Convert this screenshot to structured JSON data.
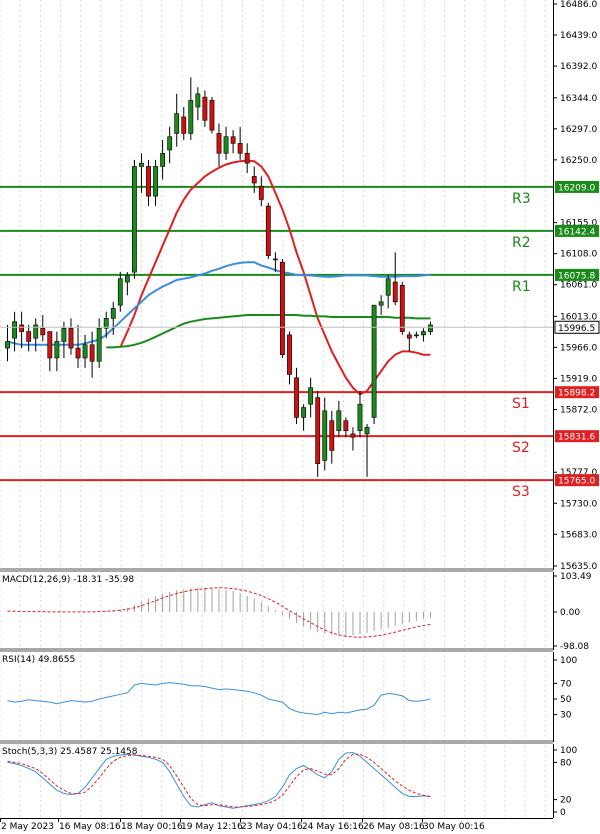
{
  "chart_data": [
    {
      "type": "candlestick",
      "panel": "price",
      "ylim": [
        15635.0,
        16486.0
      ],
      "y_ticks": [
        "16486.0",
        "16439.0",
        "16392.0",
        "16344.0",
        "16297.0",
        "16250.0",
        "16155.0",
        "16108.0",
        "16061.0",
        "16013.0",
        "15966.0",
        "15919.0",
        "15872.0",
        "15777.0",
        "15730.0",
        "15683.0",
        "15635.0"
      ],
      "x_labels": [
        "2 May 2023",
        "16 May 08:16",
        "18 May 00:16",
        "19 May 12:16",
        "23 May 04:16",
        "24 May 16:16",
        "26 May 08:16",
        "30 May 00:16"
      ],
      "current_price": "15996.5",
      "candles": [
        {
          "o": 15965,
          "h": 16000,
          "l": 15945,
          "c": 15975
        },
        {
          "o": 15980,
          "h": 16020,
          "l": 15960,
          "c": 16005
        },
        {
          "o": 16000,
          "h": 16020,
          "l": 15965,
          "c": 15990
        },
        {
          "o": 15990,
          "h": 16000,
          "l": 15960,
          "c": 15975
        },
        {
          "o": 15980,
          "h": 16010,
          "l": 15960,
          "c": 16000
        },
        {
          "o": 15995,
          "h": 16015,
          "l": 15975,
          "c": 15985
        },
        {
          "o": 15990,
          "h": 15990,
          "l": 15930,
          "c": 15950
        },
        {
          "o": 15950,
          "h": 15990,
          "l": 15930,
          "c": 15975
        },
        {
          "o": 15975,
          "h": 16005,
          "l": 15950,
          "c": 15995
        },
        {
          "o": 15995,
          "h": 16010,
          "l": 15955,
          "c": 15965
        },
        {
          "o": 15965,
          "h": 16000,
          "l": 15935,
          "c": 15950
        },
        {
          "o": 15950,
          "h": 15985,
          "l": 15935,
          "c": 15970
        },
        {
          "o": 15970,
          "h": 15990,
          "l": 15920,
          "c": 15945
        },
        {
          "o": 15945,
          "h": 16010,
          "l": 15935,
          "c": 15995
        },
        {
          "o": 15995,
          "h": 16020,
          "l": 15980,
          "c": 16010
        },
        {
          "o": 16010,
          "h": 16035,
          "l": 15985,
          "c": 16025
        },
        {
          "o": 16030,
          "h": 16080,
          "l": 16020,
          "c": 16070
        },
        {
          "o": 16065,
          "h": 16080,
          "l": 16045,
          "c": 16075
        },
        {
          "o": 16080,
          "h": 16250,
          "l": 16070,
          "c": 16240
        },
        {
          "o": 16240,
          "h": 16260,
          "l": 16200,
          "c": 16245
        },
        {
          "o": 16240,
          "h": 16250,
          "l": 16180,
          "c": 16195
        },
        {
          "o": 16195,
          "h": 16250,
          "l": 16180,
          "c": 16240
        },
        {
          "o": 16240,
          "h": 16280,
          "l": 16220,
          "c": 16260
        },
        {
          "o": 16265,
          "h": 16300,
          "l": 16245,
          "c": 16285
        },
        {
          "o": 16290,
          "h": 16350,
          "l": 16270,
          "c": 16320
        },
        {
          "o": 16315,
          "h": 16330,
          "l": 16280,
          "c": 16290
        },
        {
          "o": 16290,
          "h": 16375,
          "l": 16280,
          "c": 16340
        },
        {
          "o": 16330,
          "h": 16360,
          "l": 16310,
          "c": 16350
        },
        {
          "o": 16345,
          "h": 16355,
          "l": 16300,
          "c": 16310
        },
        {
          "o": 16340,
          "h": 16345,
          "l": 16290,
          "c": 16295
        },
        {
          "o": 16290,
          "h": 16305,
          "l": 16240,
          "c": 16260
        },
        {
          "o": 16260,
          "h": 16300,
          "l": 16250,
          "c": 16285
        },
        {
          "o": 16285,
          "h": 16295,
          "l": 16260,
          "c": 16275
        },
        {
          "o": 16275,
          "h": 16300,
          "l": 16250,
          "c": 16260
        },
        {
          "o": 16260,
          "h": 16275,
          "l": 16230,
          "c": 16245
        },
        {
          "o": 16225,
          "h": 16240,
          "l": 16200,
          "c": 16215
        },
        {
          "o": 16210,
          "h": 16225,
          "l": 16180,
          "c": 16190
        },
        {
          "o": 16180,
          "h": 16185,
          "l": 16100,
          "c": 16105
        },
        {
          "o": 16100,
          "h": 16110,
          "l": 16080,
          "c": 16100
        },
        {
          "o": 16095,
          "h": 16100,
          "l": 15950,
          "c": 15955
        },
        {
          "o": 15985,
          "h": 15990,
          "l": 15910,
          "c": 15925
        },
        {
          "o": 15920,
          "h": 15935,
          "l": 15850,
          "c": 15860
        },
        {
          "o": 15860,
          "h": 15880,
          "l": 15840,
          "c": 15875
        },
        {
          "o": 15880,
          "h": 15920,
          "l": 15860,
          "c": 15905
        },
        {
          "o": 15890,
          "h": 15900,
          "l": 15770,
          "c": 15790
        },
        {
          "o": 15795,
          "h": 15890,
          "l": 15780,
          "c": 15870
        },
        {
          "o": 15855,
          "h": 15870,
          "l": 15790,
          "c": 15810
        },
        {
          "o": 15840,
          "h": 15885,
          "l": 15830,
          "c": 15870
        },
        {
          "o": 15855,
          "h": 15860,
          "l": 15830,
          "c": 15840
        },
        {
          "o": 15835,
          "h": 15845,
          "l": 15810,
          "c": 15830
        },
        {
          "o": 15840,
          "h": 15900,
          "l": 15830,
          "c": 15880
        },
        {
          "o": 15835,
          "h": 15850,
          "l": 15770,
          "c": 15845
        },
        {
          "o": 15860,
          "h": 16030,
          "l": 15850,
          "c": 16030
        },
        {
          "o": 16030,
          "h": 16045,
          "l": 16015,
          "c": 16035
        },
        {
          "o": 16045,
          "h": 16075,
          "l": 16025,
          "c": 16070
        },
        {
          "o": 16065,
          "h": 16110,
          "l": 16030,
          "c": 16035
        },
        {
          "o": 16060,
          "h": 16065,
          "l": 15985,
          "c": 15990
        },
        {
          "o": 15985,
          "h": 15990,
          "l": 15960,
          "c": 15980
        },
        {
          "o": 15985,
          "h": 15990,
          "l": 15980,
          "c": 15985
        },
        {
          "o": 15985,
          "h": 15995,
          "l": 15975,
          "c": 15990
        },
        {
          "o": 15990,
          "h": 16005,
          "l": 15985,
          "c": 16000
        }
      ],
      "moving_averages": [
        {
          "name": "fast",
          "color": "#e02020",
          "values": [
            null,
            null,
            null,
            null,
            null,
            null,
            null,
            null,
            null,
            null,
            null,
            null,
            null,
            null,
            null,
            null,
            15966,
            15990,
            16015,
            16045,
            16070,
            16095,
            16120,
            16145,
            16170,
            16190,
            16205,
            16215,
            16225,
            16232,
            16238,
            16243,
            16246,
            16248,
            16249,
            16248,
            16240,
            16225,
            16200,
            16175,
            16145,
            16110,
            16080,
            16045,
            16010,
            15985,
            15960,
            15940,
            15920,
            15905,
            15895,
            15900,
            15915,
            15930,
            15945,
            15955,
            15960,
            15960,
            15958,
            15955,
            15955
          ]
        },
        {
          "name": "medium",
          "color": "#3b8fe0",
          "values": [
            15975,
            15972,
            15970,
            15970,
            15970,
            15970,
            15970,
            15970,
            15970,
            15970,
            15970,
            15972,
            15975,
            15978,
            15985,
            15995,
            16005,
            16015,
            16025,
            16035,
            16045,
            16052,
            16058,
            16063,
            16068,
            16070,
            16072,
            16075,
            16078,
            16082,
            16085,
            16089,
            16092,
            16094,
            16095,
            16095,
            16090,
            16087,
            16083,
            16080,
            16078,
            16076,
            16075,
            16075,
            16074,
            16073,
            16073,
            16074,
            16075,
            16075,
            16075,
            16075,
            16074,
            16073,
            16073,
            16073,
            16074,
            16074,
            16074,
            16075,
            16076
          ]
        },
        {
          "name": "slow",
          "color": "#1a8a1a",
          "values": [
            null,
            null,
            null,
            null,
            null,
            null,
            null,
            null,
            null,
            null,
            null,
            null,
            null,
            null,
            15966,
            15966,
            15967,
            15968,
            15970,
            15973,
            15977,
            15982,
            15987,
            15992,
            15997,
            16002,
            16005,
            16007,
            16009,
            16010,
            16011,
            16012,
            16013,
            16014,
            16015,
            16015,
            16015,
            16015,
            16015,
            16015,
            16015,
            16015,
            16014,
            16014,
            16013,
            16013,
            16012,
            16012,
            16012,
            16012,
            16012,
            16012,
            16012,
            16012,
            16012,
            16011,
            16011,
            16011,
            16010,
            16010,
            16010
          ]
        }
      ],
      "levels": [
        {
          "name": "R3",
          "value": 16209.0,
          "label": "16209.0",
          "color": "#1a8a1a"
        },
        {
          "name": "R2",
          "value": 16142.4,
          "label": "16142.4",
          "color": "#1a8a1a"
        },
        {
          "name": "R1",
          "value": 16075.8,
          "label": "16075.8",
          "color": "#1a8a1a"
        },
        {
          "name": "S1",
          "value": 15898.2,
          "label": "15898.2",
          "color": "#e02020"
        },
        {
          "name": "S2",
          "value": 15831.6,
          "label": "15831.6",
          "color": "#e02020"
        },
        {
          "name": "S3",
          "value": 15765.0,
          "label": "15765.0",
          "color": "#e02020"
        }
      ],
      "bull_color": "#1a8a1a",
      "bear_color": "#d01010"
    },
    {
      "type": "bar",
      "panel": "macd",
      "label": "MACD(12,26,9) -18.31 -35.98",
      "ylim": [
        -98.08,
        103.49
      ],
      "y_ticks": [
        "103.49",
        "0.00",
        "-98.08"
      ],
      "histogram": [
        0,
        0,
        0,
        0,
        0,
        0,
        0,
        0,
        0,
        0,
        0,
        0,
        0,
        0,
        2,
        5,
        8,
        12,
        20,
        30,
        38,
        45,
        52,
        58,
        63,
        66,
        68,
        70,
        70,
        69,
        67,
        64,
        60,
        54,
        46,
        38,
        28,
        16,
        5,
        -8,
        -20,
        -32,
        -42,
        -50,
        -58,
        -63,
        -66,
        -68,
        -68,
        -67,
        -64,
        -60,
        -55,
        -50,
        -45,
        -40,
        -35,
        -30,
        -25,
        -20,
        -18
      ],
      "signal": [
        2,
        2,
        1,
        1,
        1,
        1,
        0,
        0,
        0,
        0,
        0,
        0,
        0,
        1,
        2,
        3,
        5,
        8,
        12,
        18,
        25,
        32,
        40,
        47,
        53,
        58,
        62,
        65,
        67,
        69,
        70,
        69,
        67,
        64,
        60,
        54,
        47,
        38,
        28,
        16,
        4,
        -8,
        -20,
        -31,
        -42,
        -52,
        -60,
        -66,
        -70,
        -72,
        -73,
        -72,
        -70,
        -67,
        -63,
        -58,
        -53,
        -48,
        -43,
        -39,
        -36
      ],
      "hist_color": "#a0a0a0",
      "signal_color": "#e02020"
    },
    {
      "type": "line",
      "panel": "rsi",
      "label": "RSI(14) 49.8655",
      "ylim": [
        0,
        100
      ],
      "y_ticks": [
        "100",
        "70",
        "50",
        "30"
      ],
      "values": [
        48,
        46,
        47,
        49,
        48,
        47,
        46,
        44,
        46,
        48,
        47,
        46,
        47,
        50,
        52,
        54,
        56,
        58,
        68,
        70,
        69,
        68,
        70,
        71,
        70,
        69,
        67,
        67,
        66,
        64,
        62,
        63,
        62,
        61,
        60,
        58,
        55,
        50,
        48,
        46,
        38,
        34,
        32,
        31,
        30,
        33,
        31,
        33,
        32,
        34,
        36,
        37,
        42,
        55,
        57,
        56,
        54,
        48,
        47,
        48,
        50
      ],
      "color": "#3b8fe0"
    },
    {
      "type": "line",
      "panel": "stoch",
      "label": "Stoch(5,3,3) 25.4587 25.1458",
      "ylim": [
        0,
        100
      ],
      "y_ticks": [
        "100",
        "80",
        "20",
        "0"
      ],
      "main": [
        80,
        78,
        75,
        70,
        65,
        55,
        45,
        35,
        30,
        28,
        30,
        40,
        55,
        70,
        85,
        90,
        92,
        93,
        92,
        90,
        88,
        85,
        80,
        65,
        45,
        25,
        10,
        8,
        12,
        15,
        10,
        8,
        6,
        8,
        10,
        12,
        14,
        18,
        25,
        40,
        60,
        70,
        75,
        68,
        60,
        55,
        65,
        85,
        95,
        96,
        90,
        80,
        70,
        60,
        50,
        40,
        30,
        25,
        25,
        26,
        25
      ],
      "signal": [
        82,
        80,
        78,
        74,
        70,
        62,
        52,
        42,
        35,
        30,
        29,
        32,
        42,
        55,
        70,
        82,
        88,
        91,
        92,
        91,
        90,
        88,
        85,
        75,
        58,
        40,
        22,
        12,
        10,
        12,
        12,
        10,
        8,
        8,
        9,
        10,
        12,
        14,
        19,
        27,
        42,
        57,
        68,
        70,
        66,
        61,
        60,
        70,
        85,
        93,
        93,
        88,
        80,
        70,
        60,
        50,
        42,
        35,
        30,
        27,
        25
      ],
      "main_color": "#3b8fe0",
      "signal_color": "#e02020"
    }
  ]
}
